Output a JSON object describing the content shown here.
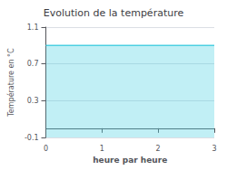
{
  "chart_data": {
    "type": "area",
    "title": "Evolution de la température",
    "xlabel": "heure par heure",
    "ylabel": "Température en °C",
    "x": [
      0,
      3
    ],
    "values": [
      0.9,
      0.9
    ],
    "color": "#4dd0e1",
    "xlim": [
      0,
      3
    ],
    "xticks": [
      0,
      1,
      2,
      3
    ],
    "ylim": [
      -0.1,
      1.1
    ],
    "yticks": [
      -0.1,
      0.3,
      0.7,
      1.1
    ],
    "grid": true
  }
}
